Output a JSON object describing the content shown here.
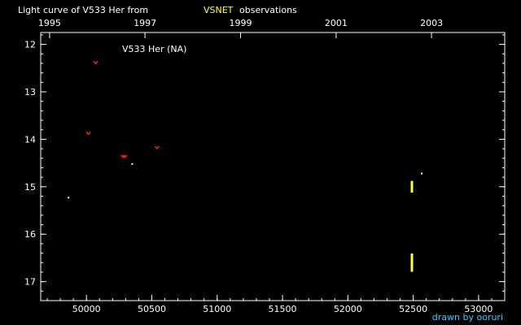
{
  "chart_data": {
    "type": "scatter",
    "title_prefix": "Light curve of V533 Her from",
    "title_source": "VSNET",
    "title_suffix": "observations",
    "object_label": "V533 Her (NA)",
    "credit": "drawn by ooruri",
    "xlabel": "",
    "ylabel": "",
    "xlim": [
      49650,
      53200
    ],
    "ylim": [
      17.4,
      11.75
    ],
    "y_inverted": true,
    "x_ticks": [
      {
        "value": 50000,
        "label": "50000"
      },
      {
        "value": 50500,
        "label": "50500"
      },
      {
        "value": 51000,
        "label": "51000"
      },
      {
        "value": 51500,
        "label": "51500"
      },
      {
        "value": 52000,
        "label": "52000"
      },
      {
        "value": 52500,
        "label": "52500"
      },
      {
        "value": 53000,
        "label": "53000"
      }
    ],
    "x_minor_step": 100,
    "year_ticks": [
      {
        "value": 49718,
        "label": "1995"
      },
      {
        "value": 50448,
        "label": "1997"
      },
      {
        "value": 51179,
        "label": "1999"
      },
      {
        "value": 51910,
        "label": "2001"
      },
      {
        "value": 52640,
        "label": "2003"
      }
    ],
    "y_ticks": [
      {
        "value": 12,
        "label": "12"
      },
      {
        "value": 13,
        "label": "13"
      },
      {
        "value": 14,
        "label": "14"
      },
      {
        "value": 15,
        "label": "15"
      },
      {
        "value": 16,
        "label": "16"
      },
      {
        "value": 17,
        "label": "17"
      }
    ],
    "y_minor_step": 0.2,
    "grid": false,
    "colors": {
      "background": "#000000",
      "axes": "#ffffff",
      "visual": "#ffffff",
      "upper_limit": "#ff2222",
      "ccd": "#ffff33",
      "credit": "#33ccff"
    },
    "series": [
      {
        "marker": "dot",
        "color": "#ffffff",
        "points": [
          {
            "x": 49863,
            "y": 15.23
          },
          {
            "x": 50350,
            "y": 14.52
          },
          {
            "x": 52565,
            "y": 14.72
          }
        ]
      },
      {
        "marker": "upper-limit",
        "color": "#ff2222",
        "points": [
          {
            "x": 50070,
            "y": 12.38
          },
          {
            "x": 50015,
            "y": 13.87
          },
          {
            "x": 50280,
            "y": 14.36
          },
          {
            "x": 50295,
            "y": 14.36
          },
          {
            "x": 50540,
            "y": 14.17
          }
        ]
      },
      {
        "marker": "dot",
        "color": "#ffff33",
        "points": [
          {
            "x": 52490,
            "y": 14.92
          },
          {
            "x": 52490,
            "y": 14.96
          },
          {
            "x": 52490,
            "y": 15.0
          },
          {
            "x": 52490,
            "y": 15.04
          },
          {
            "x": 52490,
            "y": 15.08
          },
          {
            "x": 52490,
            "y": 16.45
          },
          {
            "x": 52490,
            "y": 16.52
          },
          {
            "x": 52490,
            "y": 16.58
          },
          {
            "x": 52490,
            "y": 16.64
          },
          {
            "x": 52490,
            "y": 16.7
          },
          {
            "x": 52490,
            "y": 16.75
          }
        ]
      }
    ]
  }
}
